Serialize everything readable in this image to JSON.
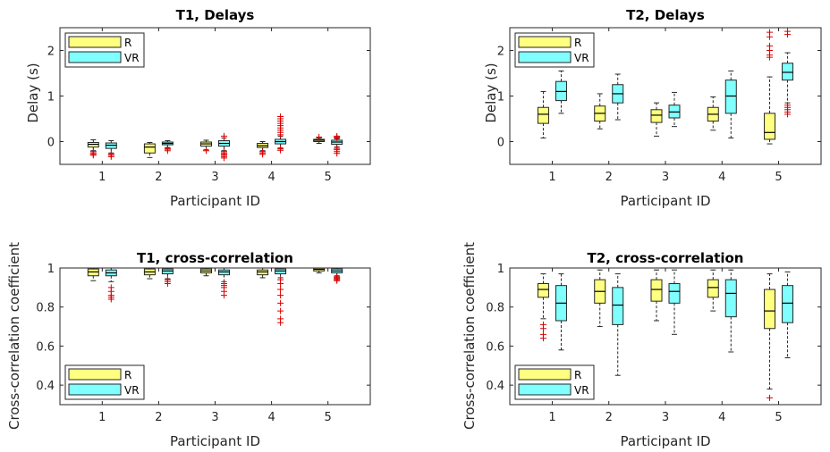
{
  "colors": {
    "R": "#ffff80",
    "VR": "#80ffff",
    "outlier": "#dd0000",
    "frame": "#262626",
    "median": "#000000"
  },
  "chart_data": [
    {
      "type": "box",
      "title": "T1, Delays",
      "xlabel": "Participant ID",
      "ylabel": "Delay (s)",
      "categories": [
        "1",
        "2",
        "3",
        "4",
        "5"
      ],
      "ylim": [
        -0.5,
        2.5
      ],
      "yticks": [
        0,
        1,
        2
      ],
      "yticklabels": [
        "0",
        "1",
        "2"
      ],
      "legend": {
        "position": "top-left",
        "entries": [
          "R",
          "VR"
        ]
      },
      "series": [
        {
          "name": "R",
          "boxes": [
            {
              "q1": -0.12,
              "median": -0.06,
              "q3": -0.02,
              "whislo": -0.2,
              "whishi": 0.04,
              "outliers": [
                -0.22,
                -0.25,
                -0.28,
                -0.3
              ]
            },
            {
              "q1": -0.25,
              "median": -0.12,
              "q3": -0.05,
              "whislo": -0.35,
              "whishi": -0.02,
              "outliers": []
            },
            {
              "q1": -0.1,
              "median": -0.05,
              "q3": -0.01,
              "whislo": -0.18,
              "whishi": 0.03,
              "outliers": [
                -0.2
              ]
            },
            {
              "q1": -0.13,
              "median": -0.09,
              "q3": -0.04,
              "whislo": -0.2,
              "whishi": 0.0,
              "outliers": [
                -0.22,
                -0.25,
                -0.28
              ]
            },
            {
              "q1": 0.0,
              "median": 0.03,
              "q3": 0.05,
              "whislo": -0.04,
              "whishi": 0.08,
              "outliers": [
                0.1
              ]
            }
          ]
        },
        {
          "name": "VR",
          "boxes": [
            {
              "q1": -0.15,
              "median": -0.08,
              "q3": -0.03,
              "whislo": -0.25,
              "whishi": 0.02,
              "outliers": [
                -0.27,
                -0.3,
                -0.33
              ]
            },
            {
              "q1": -0.07,
              "median": -0.04,
              "q3": -0.01,
              "whislo": -0.13,
              "whishi": 0.02,
              "outliers": [
                -0.15,
                -0.17,
                -0.2
              ]
            },
            {
              "q1": -0.1,
              "median": -0.04,
              "q3": 0.02,
              "whislo": -0.2,
              "whishi": 0.08,
              "outliers": [
                -0.22,
                -0.25,
                -0.28,
                -0.3,
                -0.33,
                -0.36,
                0.12
              ]
            },
            {
              "q1": -0.05,
              "median": 0.0,
              "q3": 0.05,
              "whislo": -0.14,
              "whishi": 0.12,
              "outliers": [
                0.15,
                0.2,
                0.25,
                0.3,
                0.35,
                0.4,
                0.45,
                0.5,
                0.55,
                -0.16,
                -0.19
              ]
            },
            {
              "q1": -0.06,
              "median": -0.01,
              "q3": 0.03,
              "whislo": -0.12,
              "whishi": 0.06,
              "outliers": [
                0.08,
                0.1,
                0.12,
                -0.15,
                -0.18,
                -0.22,
                -0.26
              ]
            }
          ]
        }
      ]
    },
    {
      "type": "box",
      "title": "T2, Delays",
      "xlabel": "Participant ID",
      "ylabel": "Delay (s)",
      "categories": [
        "1",
        "2",
        "3",
        "4",
        "5"
      ],
      "ylim": [
        -0.5,
        2.5
      ],
      "yticks": [
        0,
        1,
        2
      ],
      "yticklabels": [
        "0",
        "1",
        "2"
      ],
      "legend": {
        "position": "top-left",
        "entries": [
          "R",
          "VR"
        ]
      },
      "series": [
        {
          "name": "R",
          "boxes": [
            {
              "q1": 0.4,
              "median": 0.6,
              "q3": 0.75,
              "whislo": 0.08,
              "whishi": 1.1,
              "outliers": []
            },
            {
              "q1": 0.45,
              "median": 0.62,
              "q3": 0.78,
              "whislo": 0.28,
              "whishi": 1.05,
              "outliers": []
            },
            {
              "q1": 0.42,
              "median": 0.58,
              "q3": 0.7,
              "whislo": 0.12,
              "whishi": 0.85,
              "outliers": []
            },
            {
              "q1": 0.45,
              "median": 0.6,
              "q3": 0.75,
              "whislo": 0.25,
              "whishi": 0.98,
              "outliers": []
            },
            {
              "q1": 0.05,
              "median": 0.2,
              "q3": 0.62,
              "whislo": -0.05,
              "whishi": 1.42,
              "outliers": [
                1.85,
                1.9,
                2.0,
                2.1,
                2.3,
                2.4
              ]
            }
          ]
        },
        {
          "name": "VR",
          "boxes": [
            {
              "q1": 0.9,
              "median": 1.1,
              "q3": 1.32,
              "whislo": 0.62,
              "whishi": 1.55,
              "outliers": []
            },
            {
              "q1": 0.85,
              "median": 1.05,
              "q3": 1.25,
              "whislo": 0.48,
              "whishi": 1.48,
              "outliers": []
            },
            {
              "q1": 0.52,
              "median": 0.65,
              "q3": 0.8,
              "whislo": 0.33,
              "whishi": 1.08,
              "outliers": []
            },
            {
              "q1": 0.62,
              "median": 1.0,
              "q3": 1.35,
              "whislo": 0.08,
              "whishi": 1.55,
              "outliers": []
            },
            {
              "q1": 1.35,
              "median": 1.52,
              "q3": 1.72,
              "whislo": 0.85,
              "whishi": 1.95,
              "outliers": [
                0.6,
                0.65,
                0.7,
                0.75,
                0.8,
                2.35,
                2.42
              ]
            }
          ]
        }
      ]
    },
    {
      "type": "box",
      "title": "T1, cross-correlation",
      "xlabel": "Participant ID",
      "ylabel": "Cross-correlation coefficient",
      "categories": [
        "1",
        "2",
        "3",
        "4",
        "5"
      ],
      "ylim": [
        0.3,
        1.0
      ],
      "yticks": [
        0.4,
        0.6,
        0.8,
        1.0
      ],
      "yticklabels": [
        "0.4",
        "0.6",
        "0.8",
        "1"
      ],
      "legend": {
        "position": "bottom-left",
        "entries": [
          "R",
          "VR"
        ]
      },
      "series": [
        {
          "name": "R",
          "boxes": [
            {
              "q1": 0.96,
              "median": 0.98,
              "q3": 0.995,
              "whislo": 0.935,
              "whishi": 1.0,
              "outliers": []
            },
            {
              "q1": 0.965,
              "median": 0.98,
              "q3": 0.995,
              "whislo": 0.945,
              "whishi": 1.0,
              "outliers": []
            },
            {
              "q1": 0.975,
              "median": 0.985,
              "q3": 0.995,
              "whislo": 0.96,
              "whishi": 1.0,
              "outliers": []
            },
            {
              "q1": 0.965,
              "median": 0.98,
              "q3": 0.99,
              "whislo": 0.95,
              "whishi": 1.0,
              "outliers": []
            },
            {
              "q1": 0.985,
              "median": 0.993,
              "q3": 0.999,
              "whislo": 0.975,
              "whishi": 1.0,
              "outliers": []
            }
          ]
        },
        {
          "name": "VR",
          "boxes": [
            {
              "q1": 0.96,
              "median": 0.975,
              "q3": 0.99,
              "whislo": 0.93,
              "whishi": 1.0,
              "outliers": [
                0.9,
                0.88,
                0.86,
                0.85,
                0.84
              ]
            },
            {
              "q1": 0.97,
              "median": 0.985,
              "q3": 0.995,
              "whislo": 0.945,
              "whishi": 1.0,
              "outliers": [
                0.94,
                0.93,
                0.92
              ]
            },
            {
              "q1": 0.965,
              "median": 0.98,
              "q3": 0.99,
              "whislo": 0.93,
              "whishi": 1.0,
              "outliers": [
                0.92,
                0.91,
                0.9,
                0.88,
                0.86
              ]
            },
            {
              "q1": 0.97,
              "median": 0.985,
              "q3": 0.995,
              "whislo": 0.95,
              "whishi": 1.0,
              "outliers": [
                0.94,
                0.92,
                0.89,
                0.86,
                0.82,
                0.78,
                0.74,
                0.72
              ]
            },
            {
              "q1": 0.975,
              "median": 0.985,
              "q3": 0.995,
              "whislo": 0.96,
              "whishi": 1.0,
              "outliers": [
                0.955,
                0.95,
                0.945,
                0.94,
                0.935
              ]
            }
          ]
        }
      ]
    },
    {
      "type": "box",
      "title": "T2, cross-correlation",
      "xlabel": "Participant ID",
      "ylabel": "Cross-correlation coefficient",
      "categories": [
        "1",
        "2",
        "3",
        "4",
        "5"
      ],
      "ylim": [
        0.3,
        1.0
      ],
      "yticks": [
        0.4,
        0.6,
        0.8,
        1.0
      ],
      "yticklabels": [
        "0.4",
        "0.6",
        "0.8",
        "1"
      ],
      "legend": {
        "position": "bottom-left",
        "entries": [
          "R",
          "VR"
        ]
      },
      "series": [
        {
          "name": "R",
          "boxes": [
            {
              "q1": 0.85,
              "median": 0.89,
              "q3": 0.92,
              "whislo": 0.74,
              "whishi": 0.97,
              "outliers": [
                0.71,
                0.69,
                0.66,
                0.64
              ]
            },
            {
              "q1": 0.82,
              "median": 0.88,
              "q3": 0.94,
              "whislo": 0.7,
              "whishi": 0.99,
              "outliers": []
            },
            {
              "q1": 0.83,
              "median": 0.89,
              "q3": 0.94,
              "whislo": 0.73,
              "whishi": 0.99,
              "outliers": []
            },
            {
              "q1": 0.85,
              "median": 0.9,
              "q3": 0.94,
              "whislo": 0.78,
              "whishi": 0.99,
              "outliers": []
            },
            {
              "q1": 0.69,
              "median": 0.78,
              "q3": 0.89,
              "whislo": 0.38,
              "whishi": 0.97,
              "outliers": [
                0.335
              ]
            }
          ]
        },
        {
          "name": "VR",
          "boxes": [
            {
              "q1": 0.73,
              "median": 0.82,
              "q3": 0.91,
              "whislo": 0.58,
              "whishi": 0.97,
              "outliers": []
            },
            {
              "q1": 0.71,
              "median": 0.81,
              "q3": 0.9,
              "whislo": 0.45,
              "whishi": 0.97,
              "outliers": []
            },
            {
              "q1": 0.82,
              "median": 0.88,
              "q3": 0.92,
              "whislo": 0.66,
              "whishi": 0.99,
              "outliers": []
            },
            {
              "q1": 0.75,
              "median": 0.87,
              "q3": 0.94,
              "whislo": 0.57,
              "whishi": 0.99,
              "outliers": []
            },
            {
              "q1": 0.72,
              "median": 0.82,
              "q3": 0.91,
              "whislo": 0.54,
              "whishi": 0.98,
              "outliers": []
            }
          ]
        }
      ]
    }
  ]
}
